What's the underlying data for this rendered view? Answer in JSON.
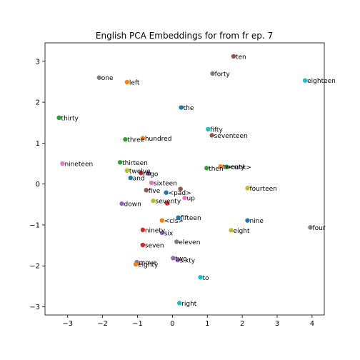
{
  "chart_data": {
    "type": "scatter",
    "title": "English PCA Embeddings for from fr ep. 7",
    "xlabel": "",
    "ylabel": "",
    "xlim": [
      -3.65,
      4.35
    ],
    "ylim": [
      -3.2,
      3.45
    ],
    "xticks": [
      -3,
      -2,
      -1,
      0,
      1,
      2,
      3,
      4
    ],
    "yticks": [
      -3,
      -2,
      -1,
      0,
      1,
      2,
      3
    ],
    "grid": false,
    "points": [
      {
        "label": "ten",
        "x": 1.75,
        "y": 3.12,
        "color": "#8c564b"
      },
      {
        "label": "forty",
        "x": 1.15,
        "y": 2.7,
        "color": "#7f7f7f"
      },
      {
        "label": "eighteen",
        "x": 3.8,
        "y": 2.53,
        "color": "#17becf"
      },
      {
        "label": "one",
        "x": -2.1,
        "y": 2.6,
        "color": "#7f7f7f"
      },
      {
        "label": "left",
        "x": -1.3,
        "y": 2.49,
        "color": "#ff7f0e"
      },
      {
        "label": "the",
        "x": 0.25,
        "y": 1.87,
        "color": "#1f77b4"
      },
      {
        "label": "thirty",
        "x": -3.25,
        "y": 1.62,
        "color": "#2ca02c"
      },
      {
        "label": "fifty",
        "x": 1.02,
        "y": 1.34,
        "color": "#17becf"
      },
      {
        "label": "seventeen",
        "x": 1.13,
        "y": 1.19,
        "color": "#8c564b"
      },
      {
        "label": "hundred",
        "x": -0.85,
        "y": 1.12,
        "color": "#ff7f0e"
      },
      {
        "label": "three",
        "x": -1.35,
        "y": 1.09,
        "color": "#2ca02c"
      },
      {
        "label": "nineteen",
        "x": -3.15,
        "y": 0.5,
        "color": "#e377c2"
      },
      {
        "label": "thirteen",
        "x": -1.5,
        "y": 0.53,
        "color": "#2ca02c"
      },
      {
        "label": "then",
        "x": 0.98,
        "y": 0.39,
        "color": "#2ca02c"
      },
      {
        "label": "twenty",
        "x": 1.38,
        "y": 0.43,
        "color": "#ff7f0e"
      },
      {
        "label": "<unk>",
        "x": 1.55,
        "y": 0.42,
        "color": "#2ca02c"
      },
      {
        "label": "twelve",
        "x": -1.3,
        "y": 0.33,
        "color": "#bcbd22"
      },
      {
        "label": "no",
        "x": -0.9,
        "y": 0.27,
        "color": "#d62728"
      },
      {
        "label": "go",
        "x": -0.7,
        "y": 0.26,
        "color": "#9467bd"
      },
      {
        "label": "and",
        "x": -1.2,
        "y": 0.15,
        "color": "#1f77b4"
      },
      {
        "label": "sixteen",
        "x": -0.6,
        "y": 0.03,
        "color": "#e377c2"
      },
      {
        "label": "fourteen",
        "x": 2.15,
        "y": -0.1,
        "color": "#bcbd22"
      },
      {
        "label": "five",
        "x": -0.75,
        "y": -0.15,
        "color": "#8c564b"
      },
      {
        "label": "<pad>",
        "x": -0.18,
        "y": -0.21,
        "color": "#1f77b4"
      },
      {
        "label": "",
        "x": 0.23,
        "y": -0.12,
        "color": "#8c564b"
      },
      {
        "label": "up",
        "x": 0.35,
        "y": -0.34,
        "color": "#e377c2"
      },
      {
        "label": "seventy",
        "x": -0.55,
        "y": -0.41,
        "color": "#bcbd22"
      },
      {
        "label": "",
        "x": -0.15,
        "y": -0.47,
        "color": "#d62728"
      },
      {
        "label": "down",
        "x": -1.45,
        "y": -0.48,
        "color": "#9467bd"
      },
      {
        "label": "fifteen",
        "x": 0.17,
        "y": -0.82,
        "color": "#1f77b4"
      },
      {
        "label": "<cls>",
        "x": -0.3,
        "y": -0.89,
        "color": "#ff7f0e"
      },
      {
        "label": "nine",
        "x": 2.15,
        "y": -0.89,
        "color": "#1f77b4"
      },
      {
        "label": "four",
        "x": 3.95,
        "y": -1.06,
        "color": "#7f7f7f"
      },
      {
        "label": "ninety",
        "x": -0.85,
        "y": -1.12,
        "color": "#d62728"
      },
      {
        "label": "eight",
        "x": 1.68,
        "y": -1.13,
        "color": "#bcbd22"
      },
      {
        "label": "six",
        "x": -0.3,
        "y": -1.19,
        "color": "#9467bd"
      },
      {
        "label": "eleven",
        "x": 0.12,
        "y": -1.41,
        "color": "#7f7f7f"
      },
      {
        "label": "seven",
        "x": -0.85,
        "y": -1.49,
        "color": "#d62728"
      },
      {
        "label": "two",
        "x": 0.02,
        "y": -1.81,
        "color": "#9467bd"
      },
      {
        "label": "sixty",
        "x": 0.15,
        "y": -1.86,
        "color": "#9467bd"
      },
      {
        "label": "move",
        "x": -1.02,
        "y": -1.91,
        "color": "#9467bd"
      },
      {
        "label": "eighty",
        "x": -1.05,
        "y": -1.96,
        "color": "#ff7f0e"
      },
      {
        "label": "to",
        "x": 0.8,
        "y": -2.28,
        "color": "#17becf"
      },
      {
        "label": "right",
        "x": 0.2,
        "y": -2.91,
        "color": "#17becf"
      }
    ]
  }
}
